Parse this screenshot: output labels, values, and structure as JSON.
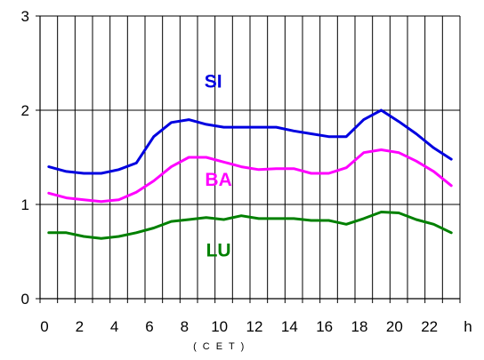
{
  "chart_data": {
    "type": "line",
    "x_unit": "h",
    "x_note": "( C E T )",
    "xlim": [
      0,
      24
    ],
    "ylim": [
      0,
      3
    ],
    "x_ticks": [
      0,
      2,
      4,
      6,
      8,
      10,
      12,
      14,
      16,
      18,
      20,
      22
    ],
    "y_ticks": [
      0,
      1,
      2,
      3
    ],
    "grid": "major gridlines on both axes",
    "x": [
      0.5,
      1.5,
      2.5,
      3.5,
      4.5,
      5.5,
      6.5,
      7.5,
      8.5,
      9.5,
      10.5,
      11.5,
      12.5,
      13.5,
      14.5,
      15.5,
      16.5,
      17.5,
      18.5,
      19.5,
      20.5,
      21.5,
      22.5,
      23.5
    ],
    "series": [
      {
        "name": "SI",
        "color": "#0000e0",
        "values": [
          1.4,
          1.35,
          1.33,
          1.33,
          1.37,
          1.44,
          1.72,
          1.87,
          1.9,
          1.85,
          1.82,
          1.82,
          1.82,
          1.82,
          1.78,
          1.75,
          1.72,
          1.72,
          1.9,
          2.0,
          1.88,
          1.75,
          1.6,
          1.48
        ]
      },
      {
        "name": "BA",
        "color": "#ff00ff",
        "values": [
          1.12,
          1.07,
          1.05,
          1.03,
          1.05,
          1.13,
          1.25,
          1.4,
          1.5,
          1.5,
          1.45,
          1.4,
          1.37,
          1.38,
          1.38,
          1.33,
          1.33,
          1.39,
          1.55,
          1.58,
          1.55,
          1.46,
          1.35,
          1.2
        ]
      },
      {
        "name": "LU",
        "color": "#008000",
        "values": [
          0.7,
          0.7,
          0.66,
          0.64,
          0.66,
          0.7,
          0.75,
          0.82,
          0.84,
          0.86,
          0.84,
          0.88,
          0.85,
          0.85,
          0.85,
          0.83,
          0.83,
          0.79,
          0.85,
          0.92,
          0.91,
          0.84,
          0.79,
          0.7
        ]
      }
    ],
    "series_labels": [
      {
        "text": "SI",
        "color": "#0000e0"
      },
      {
        "text": "BA",
        "color": "#ff00ff"
      },
      {
        "text": "LU",
        "color": "#008000"
      }
    ]
  }
}
